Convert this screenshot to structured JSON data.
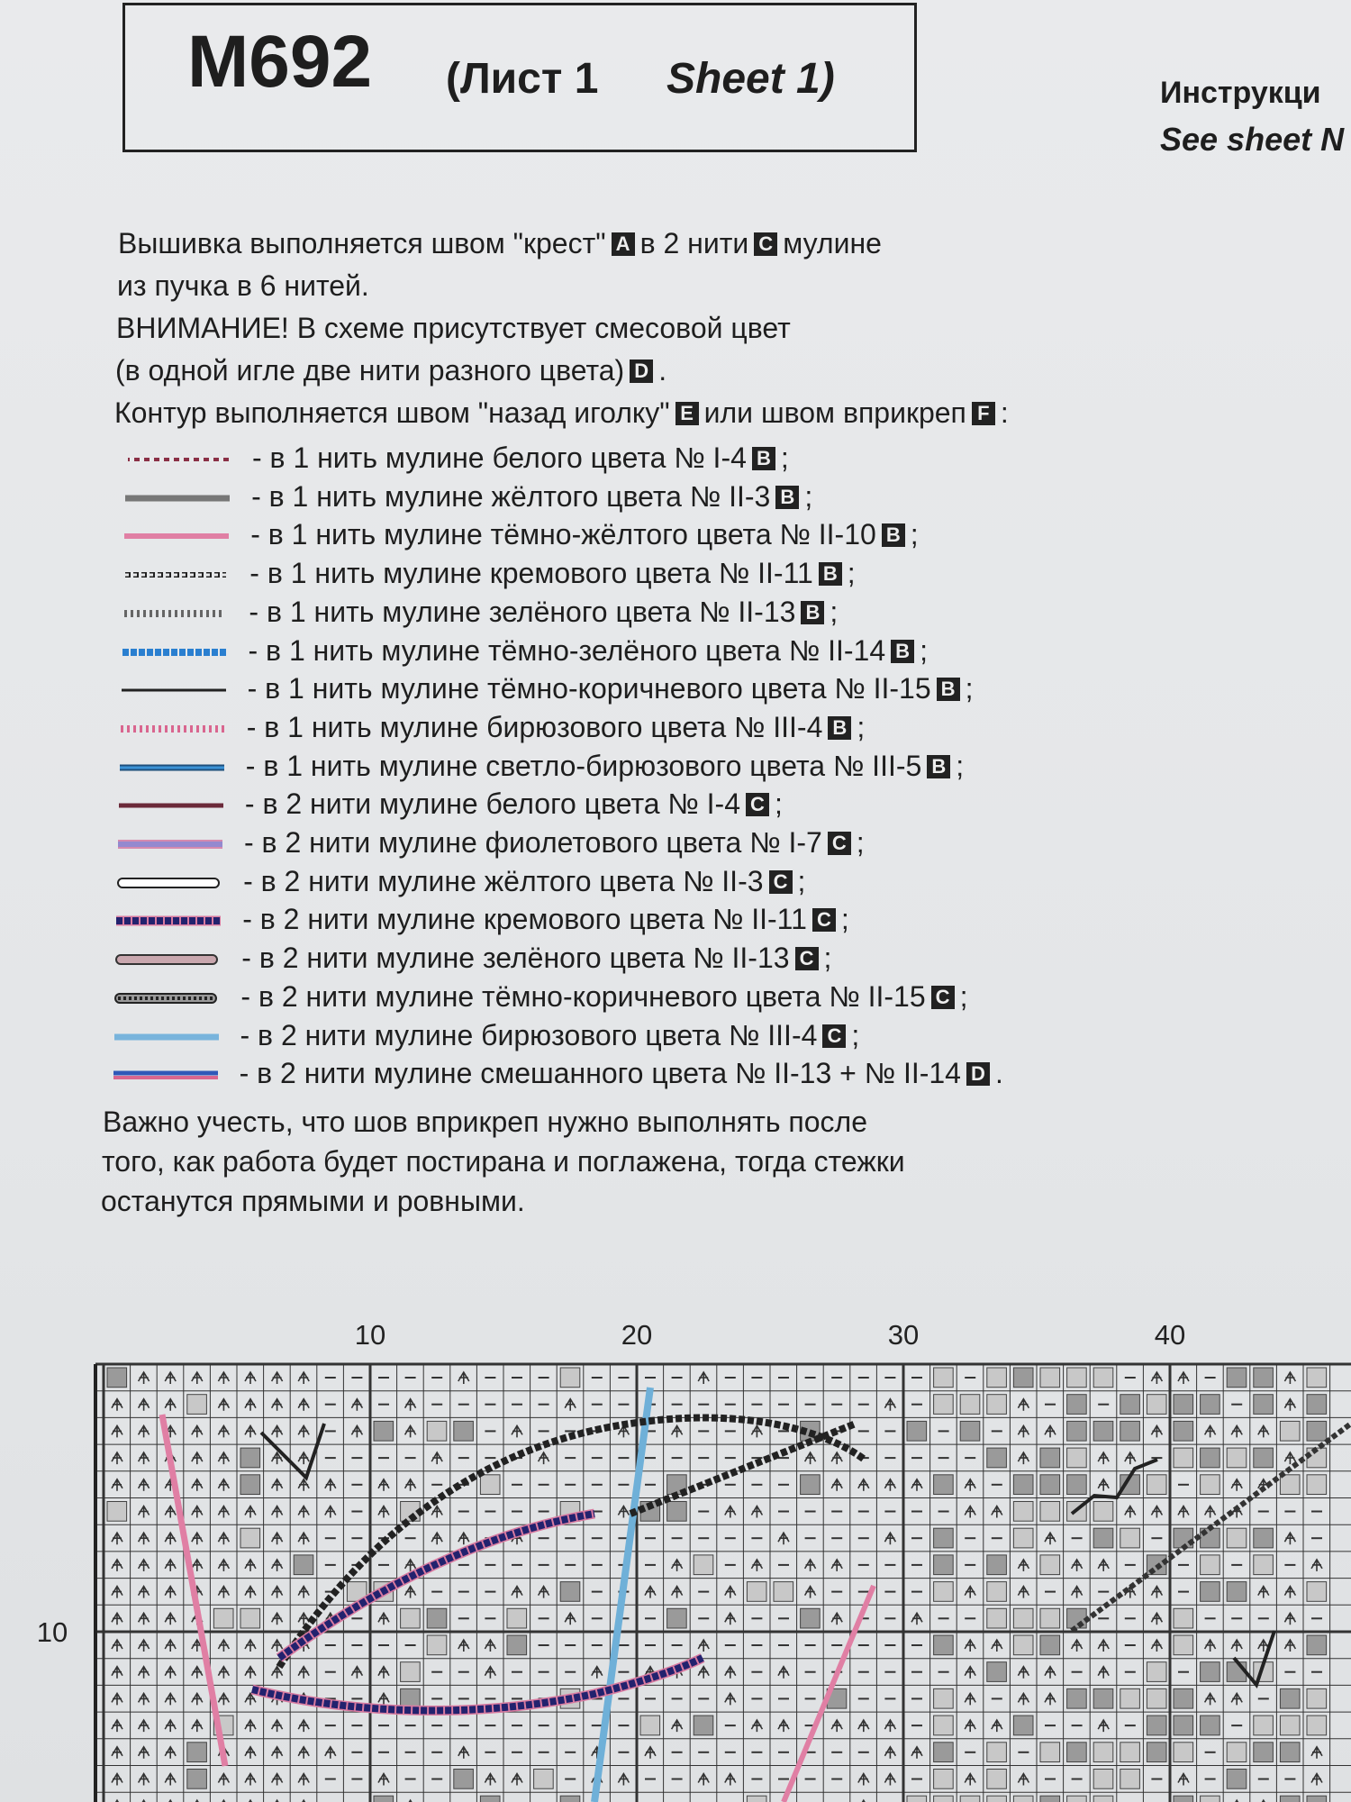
{
  "header": {
    "title": "M692",
    "sheet_ru": "(Лист 1",
    "sheet_en": "Sheet 1)"
  },
  "side": {
    "line1": "Инструкци",
    "line2": "See sheet N"
  },
  "intro": [
    [
      {
        "text": "Вышивка выполняется швом \"крест\""
      },
      {
        "badge": "A"
      },
      {
        "text": "в 2 нити"
      },
      {
        "badge": "C"
      },
      {
        "text": "мулине"
      }
    ],
    [
      {
        "text": "из пучка в 6 нитей."
      }
    ],
    [
      {
        "text": "ВНИМАНИЕ! В схеме присутствует смесовой цвет"
      }
    ],
    [
      {
        "text": "(в одной игле две нити разного цвета)"
      },
      {
        "badge": "D"
      },
      {
        "text": "."
      }
    ],
    [
      {
        "text": "Контур выполняется швом \"назад иголку\""
      },
      {
        "badge": "E"
      },
      {
        "text": "или швом вприкреп"
      },
      {
        "badge": "F"
      },
      {
        "text": ":"
      }
    ]
  ],
  "legend": [
    {
      "text": "- в 1 нить мулине белого цвета № I-4",
      "code": "B",
      "end": ";"
    },
    {
      "text": "- в 1 нить мулине жёлтого цвета № II-3",
      "code": "B",
      "end": ";"
    },
    {
      "text": "- в 1 нить мулине тёмно-жёлтого цвета № II-10",
      "code": "B",
      "end": ";"
    },
    {
      "text": "- в 1 нить мулине кремового цвета № II-11",
      "code": "B",
      "end": ";"
    },
    {
      "text": "- в 1 нить мулине зелёного цвета № II-13",
      "code": "B",
      "end": ";"
    },
    {
      "text": "- в 1 нить мулине тёмно-зелёного цвета № II-14",
      "code": "B",
      "end": ";"
    },
    {
      "text": "- в 1 нить мулине тёмно-коричневого цвета № II-15",
      "code": "B",
      "end": ";"
    },
    {
      "text": "- в 1 нить мулине бирюзового цвета № III-4",
      "code": "B",
      "end": ";"
    },
    {
      "text": "- в 1 нить мулине светло-бирюзового цвета № III-5",
      "code": "B",
      "end": ";"
    },
    {
      "text": "- в 2 нити мулине белого цвета № I-4",
      "code": "C",
      "end": ";"
    },
    {
      "text": "- в 2 нити мулине фиолетового цвета № I-7",
      "code": "C",
      "end": ";"
    },
    {
      "text": "- в 2 нити мулине жёлтого цвета № II-3",
      "code": "C",
      "end": ";"
    },
    {
      "text": "- в 2 нити мулине кремового цвета № II-11",
      "code": "C",
      "end": ";"
    },
    {
      "text": "- в 2 нити мулине зелёного цвета № II-13",
      "code": "C",
      "end": ";"
    },
    {
      "text": "- в 2 нити мулине тёмно-коричневого цвета № II-15",
      "code": "C",
      "end": ";"
    },
    {
      "text": "- в 2 нити мулине бирюзового цвета № III-4",
      "code": "C",
      "end": ";"
    },
    {
      "text": "- в 2 нити мулине смешанного цвета № II-13 + № II-14",
      "code": "D",
      "end": "."
    }
  ],
  "note": [
    "Важно учесть, что шов вприкреп нужно выполнять после",
    "того, как работа будет постирана и поглажена, тогда стежки",
    "останутся прямыми и ровными."
  ],
  "chart": {
    "col_labels": [
      "10",
      "20",
      "30",
      "40"
    ],
    "row_labels": [
      "10"
    ]
  }
}
